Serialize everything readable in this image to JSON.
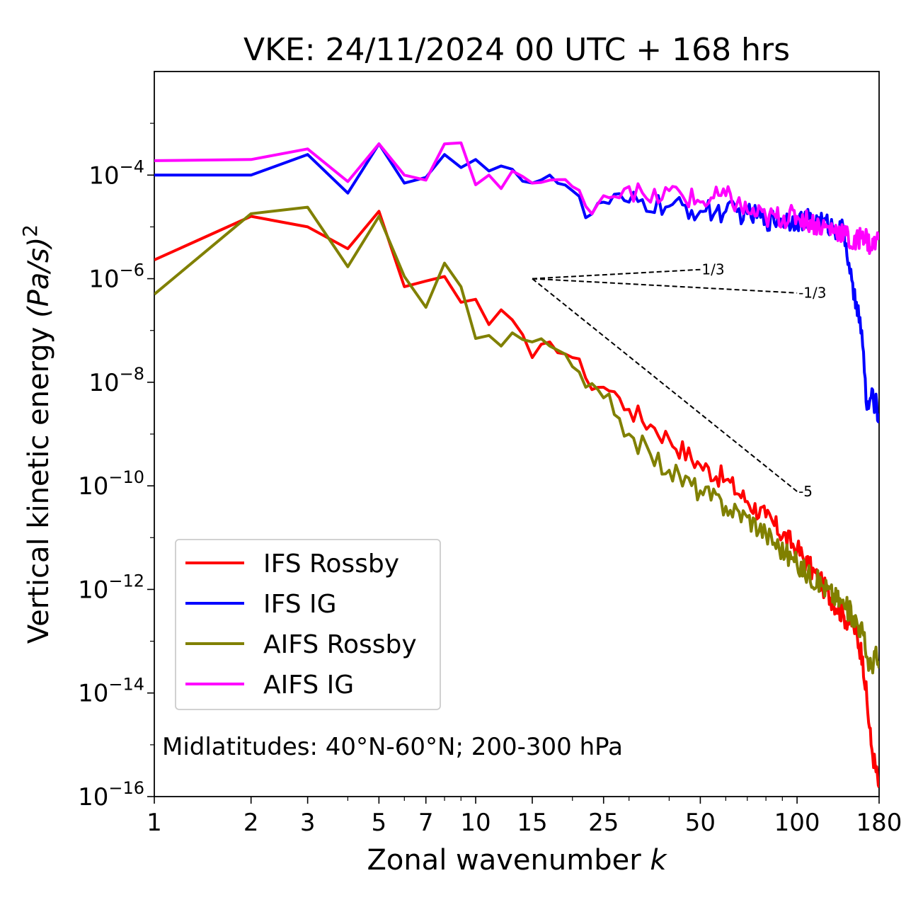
{
  "chart_data": {
    "type": "line",
    "title": "VKE: 24/11/2024 00 UTC + 168 hrs",
    "xlabel": "Zonal wavenumber",
    "xlabel_italic": "k",
    "ylabel": "Vertical kinetic energy",
    "ylabel_unit": "(Pa/s)",
    "ylabel_exponent": "2",
    "x_scale": "log",
    "y_scale": "log",
    "xlim": [
      1,
      180
    ],
    "ylim": [
      1e-16,
      0.01
    ],
    "x_ticks": [
      {
        "value": 1,
        "label": "1"
      },
      {
        "value": 2,
        "label": "2"
      },
      {
        "value": 3,
        "label": "3"
      },
      {
        "value": 5,
        "label": "5"
      },
      {
        "value": 7,
        "label": "7"
      },
      {
        "value": 10,
        "label": "10"
      },
      {
        "value": 15,
        "label": "15"
      },
      {
        "value": 25,
        "label": "25"
      },
      {
        "value": 50,
        "label": "50"
      },
      {
        "value": 100,
        "label": "100"
      },
      {
        "value": 180,
        "label": "180"
      }
    ],
    "y_ticks": [
      {
        "exp": -16,
        "base": "10",
        "sup": "−16"
      },
      {
        "exp": -14,
        "base": "10",
        "sup": "−14"
      },
      {
        "exp": -12,
        "base": "10",
        "sup": "−12"
      },
      {
        "exp": -10,
        "base": "10",
        "sup": "−10"
      },
      {
        "exp": -8,
        "base": "10",
        "sup": "−8"
      },
      {
        "exp": -6,
        "base": "10",
        "sup": "−6"
      },
      {
        "exp": -4,
        "base": "10",
        "sup": "−4"
      }
    ],
    "annotation": "Midlatitudes: 40°N-60°N; 200-300 hPa",
    "legend_position": "lower-left",
    "grid": false,
    "reference_lines": [
      {
        "label": "1/3",
        "x": [
          15,
          50
        ],
        "y": [
          1e-06,
          1.5e-06
        ]
      },
      {
        "label": "-1/3",
        "x": [
          15,
          100
        ],
        "y": [
          1e-06,
          5.3e-07
        ]
      },
      {
        "label": "-5",
        "x": [
          15,
          100
        ],
        "y": [
          1e-06,
          7.8e-11
        ]
      }
    ],
    "series": [
      {
        "name": "IFS Rossby",
        "color": "#ff0000",
        "anchors": [
          [
            1,
            2.3e-06
          ],
          [
            2,
            1.6e-05
          ],
          [
            3,
            1e-05
          ],
          [
            4,
            3.8e-06
          ],
          [
            5,
            2e-05
          ],
          [
            6,
            7e-07
          ],
          [
            7,
            9e-07
          ],
          [
            8,
            1.1e-06
          ],
          [
            9,
            3.5e-07
          ],
          [
            10,
            4e-07
          ],
          [
            11,
            1.3e-07
          ],
          [
            12,
            2.5e-07
          ],
          [
            13,
            1.6e-07
          ],
          [
            15,
            3e-08
          ],
          [
            17,
            6e-08
          ],
          [
            20,
            3e-08
          ],
          [
            22,
            1.2e-08
          ],
          [
            25,
            8e-09
          ],
          [
            28,
            5e-09
          ],
          [
            30,
            3e-09
          ],
          [
            35,
            1.5e-09
          ],
          [
            40,
            8e-10
          ],
          [
            50,
            2.5e-10
          ],
          [
            60,
            1.3e-10
          ],
          [
            70,
            5e-11
          ],
          [
            80,
            2.5e-11
          ],
          [
            100,
            6e-12
          ],
          [
            120,
            1.2e-12
          ],
          [
            140,
            3e-13
          ],
          [
            150,
            2e-13
          ],
          [
            160,
            5e-14
          ],
          [
            170,
            1e-15
          ],
          [
            180,
            1.5e-16
          ]
        ]
      },
      {
        "name": "IFS IG",
        "color": "#0000ff",
        "anchors": [
          [
            1,
            0.0001
          ],
          [
            2,
            0.0001
          ],
          [
            3,
            0.00025
          ],
          [
            4,
            4.5e-05
          ],
          [
            5,
            0.0004
          ],
          [
            6,
            7e-05
          ],
          [
            7,
            9e-05
          ],
          [
            8,
            0.00025
          ],
          [
            9,
            0.00014
          ],
          [
            10,
            0.0002
          ],
          [
            11,
            0.00012
          ],
          [
            12,
            0.00015
          ],
          [
            13,
            0.00013
          ],
          [
            15,
            7e-05
          ],
          [
            17,
            0.0001
          ],
          [
            20,
            5e-05
          ],
          [
            22,
            1.5e-05
          ],
          [
            25,
            3e-05
          ],
          [
            30,
            3e-05
          ],
          [
            40,
            2.5e-05
          ],
          [
            50,
            2e-05
          ],
          [
            60,
            2e-05
          ],
          [
            70,
            1.8e-05
          ],
          [
            80,
            1.4e-05
          ],
          [
            100,
            1.4e-05
          ],
          [
            120,
            1.2e-05
          ],
          [
            130,
            1e-05
          ],
          [
            140,
            8e-06
          ],
          [
            145,
            2e-06
          ],
          [
            150,
            4e-07
          ],
          [
            155,
            3e-07
          ],
          [
            160,
            5e-08
          ],
          [
            165,
            3e-09
          ],
          [
            170,
            5e-09
          ],
          [
            175,
            4e-09
          ],
          [
            180,
            2.5e-09
          ]
        ]
      },
      {
        "name": "AIFS Rossby",
        "color": "#808000",
        "anchors": [
          [
            1,
            5e-07
          ],
          [
            2,
            1.8e-05
          ],
          [
            3,
            2.4e-05
          ],
          [
            4,
            1.7e-06
          ],
          [
            5,
            1.6e-05
          ],
          [
            6,
            1.1e-06
          ],
          [
            7,
            2.8e-07
          ],
          [
            8,
            2e-06
          ],
          [
            9,
            7e-07
          ],
          [
            10,
            7e-08
          ],
          [
            11,
            8e-08
          ],
          [
            12,
            5e-08
          ],
          [
            13,
            9e-08
          ],
          [
            15,
            6e-08
          ],
          [
            17,
            5e-08
          ],
          [
            19,
            3.5e-08
          ],
          [
            20,
            2e-08
          ],
          [
            22,
            8e-09
          ],
          [
            25,
            5e-09
          ],
          [
            28,
            2e-09
          ],
          [
            30,
            1e-09
          ],
          [
            35,
            4e-10
          ],
          [
            40,
            2e-10
          ],
          [
            50,
            8e-11
          ],
          [
            60,
            4e-11
          ],
          [
            70,
            2.5e-11
          ],
          [
            80,
            1.2e-11
          ],
          [
            100,
            3e-12
          ],
          [
            120,
            1.2e-12
          ],
          [
            140,
            5e-13
          ],
          [
            150,
            3e-13
          ],
          [
            160,
            1.5e-13
          ],
          [
            165,
            5e-14
          ],
          [
            170,
            3e-14
          ],
          [
            175,
            6e-14
          ],
          [
            180,
            3e-14
          ]
        ]
      },
      {
        "name": "AIFS IG",
        "color": "#ff00ff",
        "anchors": [
          [
            1,
            0.00019
          ],
          [
            2,
            0.0002
          ],
          [
            3,
            0.00032
          ],
          [
            4,
            7.5e-05
          ],
          [
            5,
            0.0004
          ],
          [
            6,
            0.0001
          ],
          [
            7,
            8e-05
          ],
          [
            8,
            0.0004
          ],
          [
            9,
            0.00042
          ],
          [
            10,
            6.5e-05
          ],
          [
            11,
            0.0001
          ],
          [
            12,
            5.5e-05
          ],
          [
            13,
            0.00012
          ],
          [
            15,
            7e-05
          ],
          [
            17,
            8e-05
          ],
          [
            20,
            6e-05
          ],
          [
            22,
            2.5e-05
          ],
          [
            25,
            4e-05
          ],
          [
            30,
            6e-05
          ],
          [
            35,
            3e-05
          ],
          [
            40,
            5e-05
          ],
          [
            50,
            3e-05
          ],
          [
            60,
            4e-05
          ],
          [
            70,
            2e-05
          ],
          [
            80,
            1.5e-05
          ],
          [
            100,
            1.6e-05
          ],
          [
            120,
            1e-05
          ],
          [
            140,
            8e-06
          ],
          [
            150,
            4e-06
          ],
          [
            160,
            8e-06
          ],
          [
            170,
            4e-06
          ],
          [
            180,
            6e-06
          ]
        ]
      }
    ]
  }
}
